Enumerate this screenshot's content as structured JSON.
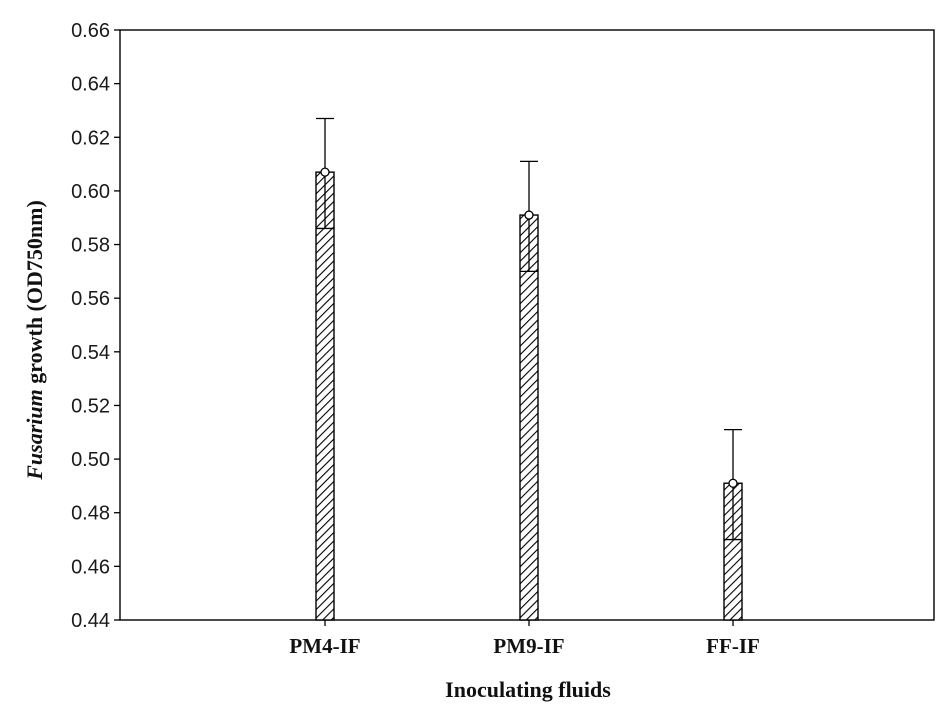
{
  "chart_data": {
    "type": "bar",
    "categories": [
      "PM4-IF",
      "PM9-IF",
      "FF-IF"
    ],
    "series": [
      {
        "values": [
          0.607,
          0.591,
          0.491
        ],
        "error_upper": [
          0.627,
          0.611,
          0.511
        ],
        "error_lower": [
          0.586,
          0.57,
          0.47
        ]
      }
    ],
    "xlabel": "Inoculating fluids",
    "ylabel_italic": "Fusarium",
    "ylabel_rest": " growth (OD750nm)",
    "ylim": [
      0.44,
      0.66
    ],
    "yticks": [
      "0.44",
      "0.46",
      "0.48",
      "0.50",
      "0.52",
      "0.54",
      "0.56",
      "0.58",
      "0.60",
      "0.62",
      "0.64",
      "0.66"
    ],
    "grid": false,
    "bar_fill": "diagonal-hatch",
    "bar_color": "#000000"
  }
}
